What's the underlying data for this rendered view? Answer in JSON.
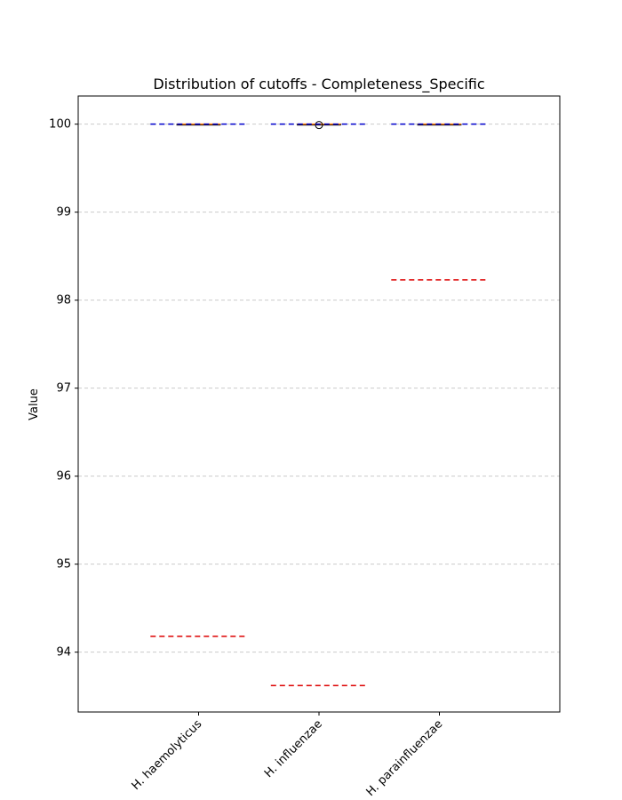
{
  "chart_data": {
    "type": "box",
    "title": "Distribution of cutoffs - Completeness_Specific",
    "xlabel": "",
    "ylabel": "Value",
    "ylim": [
      93.32,
      100.32
    ],
    "yticks": [
      "94",
      "95",
      "96",
      "97",
      "98",
      "99",
      "100"
    ],
    "grid": "y-dashed",
    "categories": [
      "H. haemolyticus",
      "H. influenzae",
      "H. parainfluenzae"
    ],
    "boxes": [
      {
        "q1": 100.0,
        "median": 100.0,
        "q3": 100.0,
        "whisker_low": 100.0,
        "whisker_high": 100.0,
        "outliers": []
      },
      {
        "q1": 100.0,
        "median": 100.0,
        "q3": 100.0,
        "whisker_low": 100.0,
        "whisker_high": 100.0,
        "outliers": [
          99.99
        ]
      },
      {
        "q1": 100.0,
        "median": 100.0,
        "q3": 100.0,
        "whisker_low": 100.0,
        "whisker_high": 100.0,
        "outliers": []
      }
    ],
    "upper_cutoffs": [
      100.0,
      100.0,
      100.0
    ],
    "lower_cutoffs": [
      94.18,
      93.62,
      98.23
    ],
    "colors": {
      "upper_cutoff": "#0000cc",
      "lower_cutoff": "#dd0000",
      "median": "#ff7f0e",
      "grid": "#cccccc"
    }
  }
}
